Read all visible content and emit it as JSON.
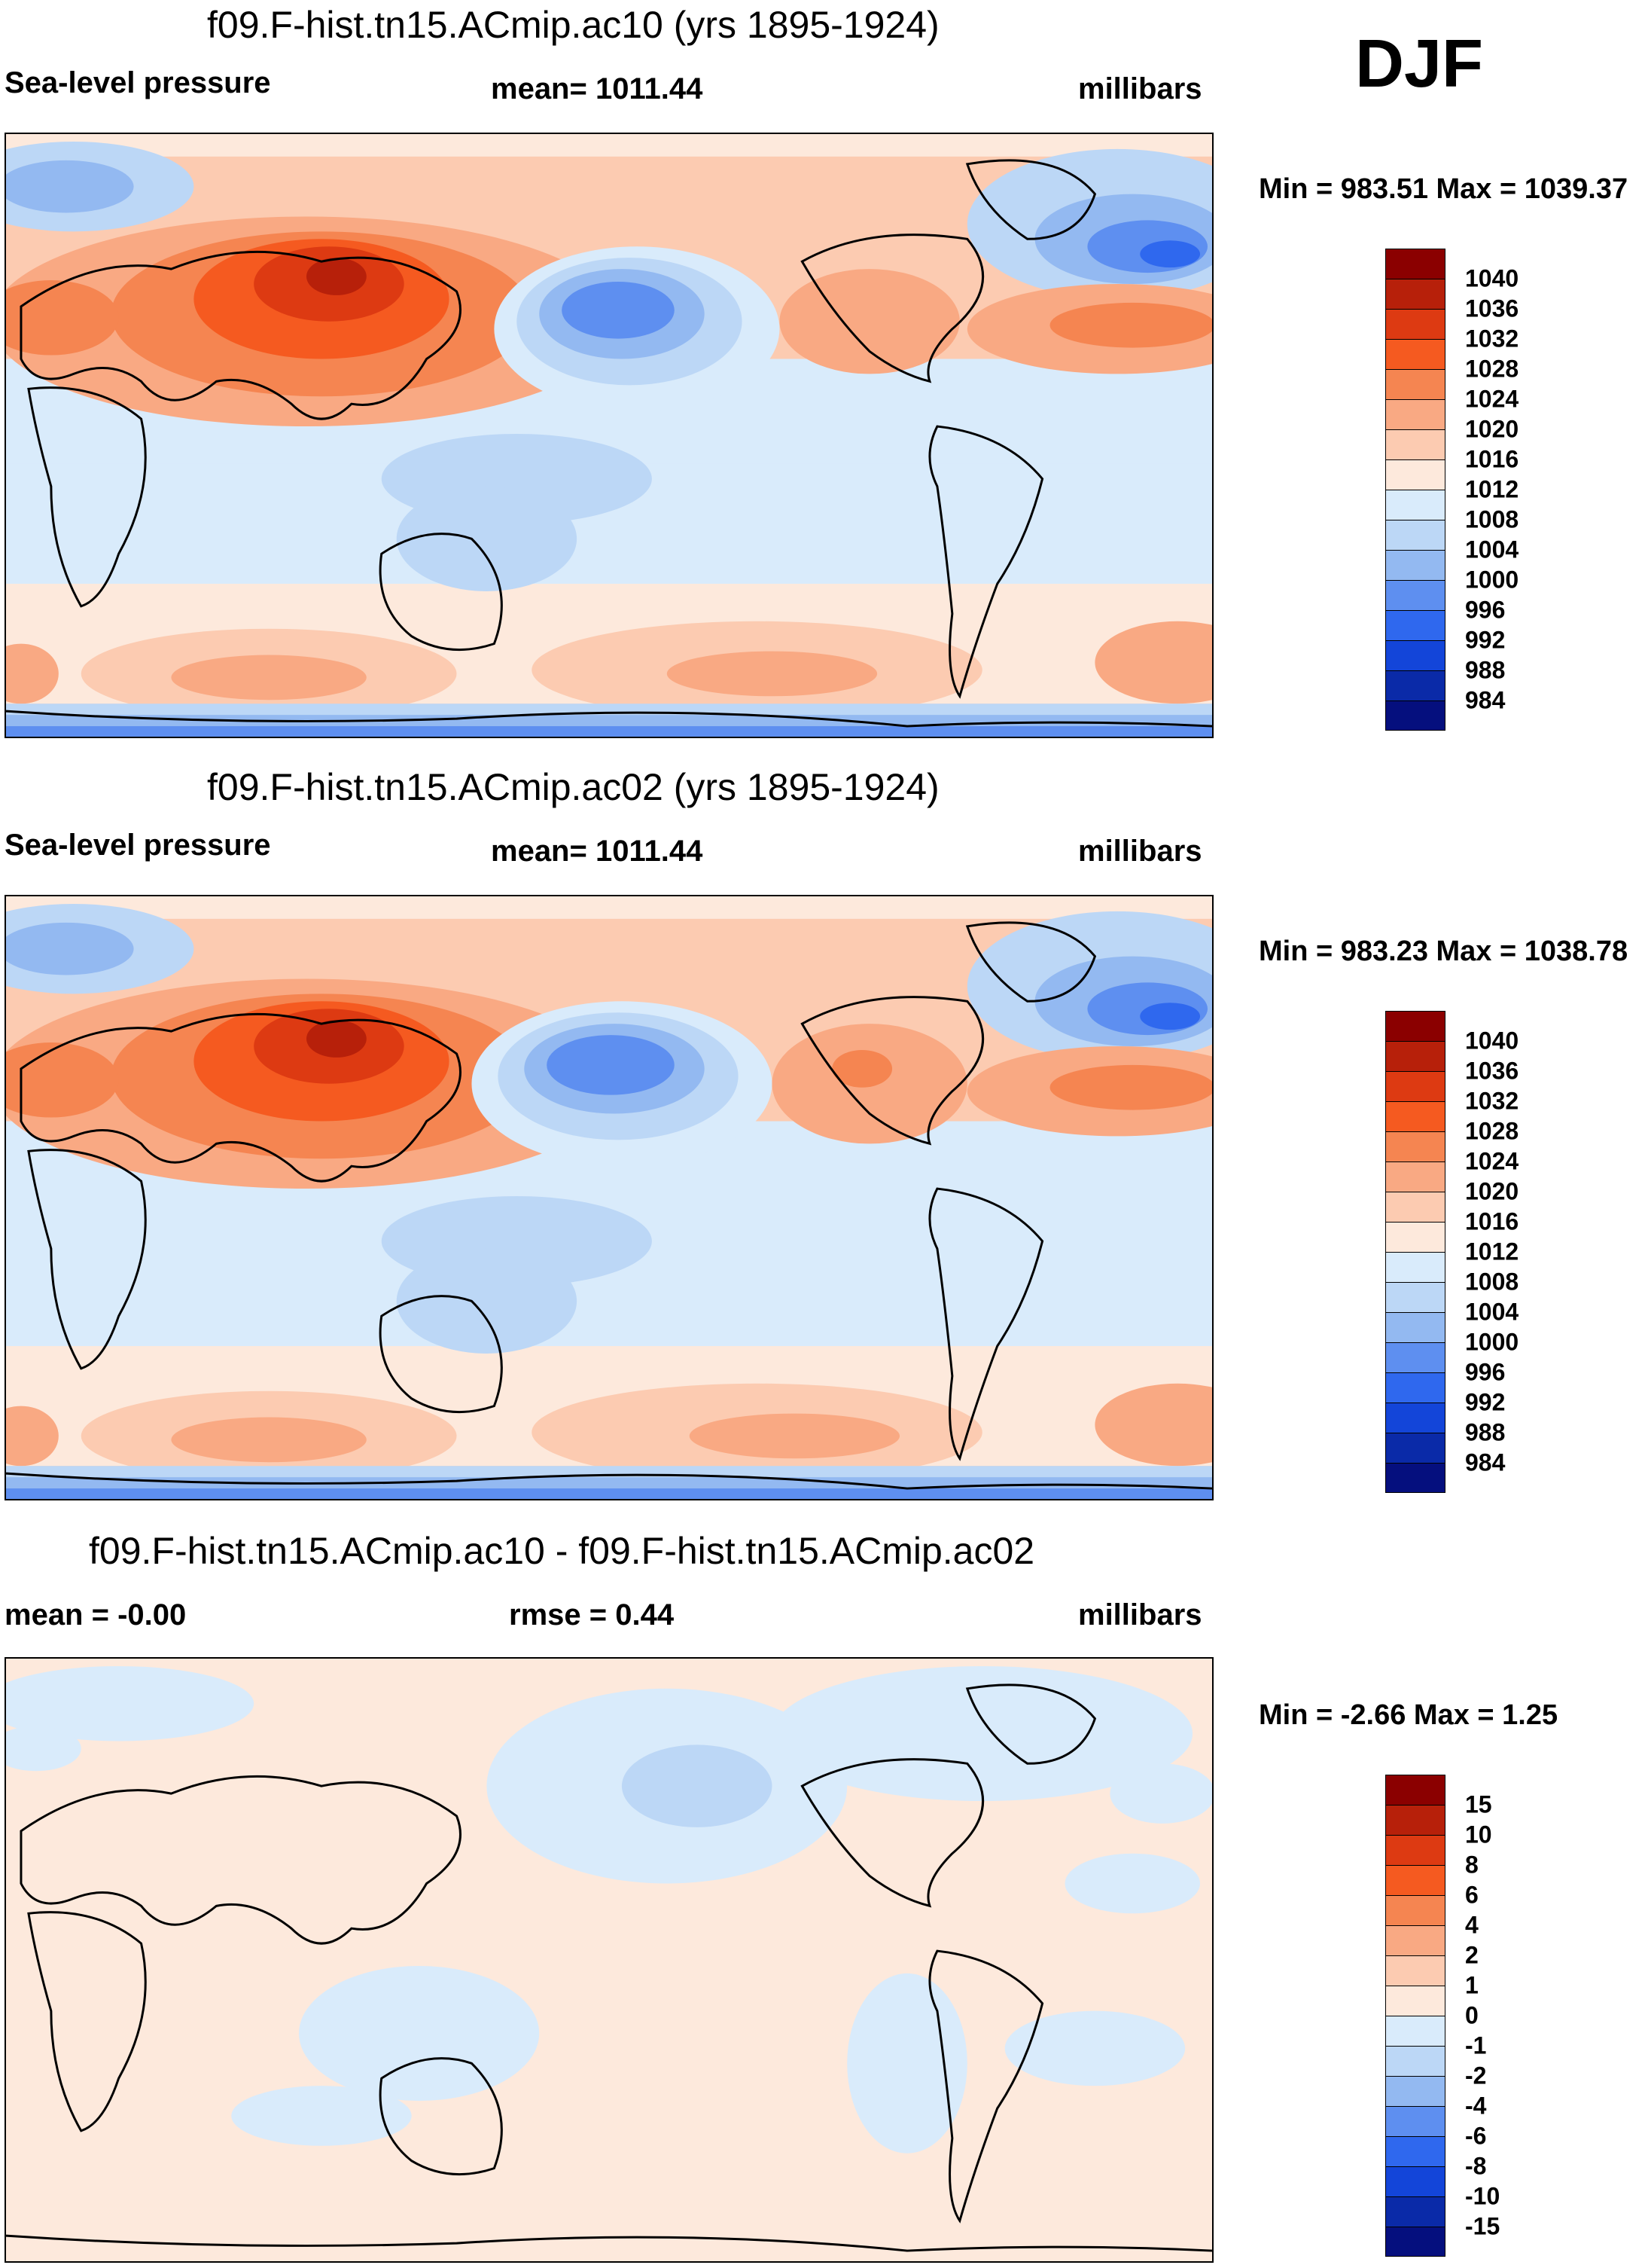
{
  "season": "DJF",
  "panels": [
    {
      "title": "f09.F-hist.tn15.ACmip.ac10 (yrs 1895-1924)",
      "left": "Sea-level pressure",
      "center": "mean= 1011.44",
      "right": "millibars",
      "minmax": "Min = 983.51 Max = 1039.37",
      "levels": [
        "1040",
        "1036",
        "1032",
        "1028",
        "1024",
        "1020",
        "1016",
        "1012",
        "1008",
        "1004",
        "1000",
        "996",
        "992",
        "988",
        "984"
      ],
      "colors": [
        "#8b0000",
        "#b7200a",
        "#dd3a12",
        "#f55a20",
        "#f58551",
        "#f9a983",
        "#fccbb1",
        "#fde9dc",
        "#d9ebfb",
        "#bcd7f6",
        "#93b9f1",
        "#5e8ff0",
        "#2f68ee",
        "#1345d9",
        "#0a2aa8",
        "#050f7e"
      ]
    },
    {
      "title": "f09.F-hist.tn15.ACmip.ac02 (yrs 1895-1924)",
      "left": "Sea-level pressure",
      "center": "mean= 1011.44",
      "right": "millibars",
      "minmax": "Min = 983.23 Max = 1038.78",
      "levels": [
        "1040",
        "1036",
        "1032",
        "1028",
        "1024",
        "1020",
        "1016",
        "1012",
        "1008",
        "1004",
        "1000",
        "996",
        "992",
        "988",
        "984"
      ],
      "colors": [
        "#8b0000",
        "#b7200a",
        "#dd3a12",
        "#f55a20",
        "#f58551",
        "#f9a983",
        "#fccbb1",
        "#fde9dc",
        "#d9ebfb",
        "#bcd7f6",
        "#93b9f1",
        "#5e8ff0",
        "#2f68ee",
        "#1345d9",
        "#0a2aa8",
        "#050f7e"
      ]
    },
    {
      "title": "f09.F-hist.tn15.ACmip.ac10 - f09.F-hist.tn15.ACmip.ac02",
      "left": "mean =  -0.00",
      "center": "rmse =   0.44",
      "right": "millibars",
      "minmax": "Min =  -2.66 Max =   1.25",
      "levels": [
        "15",
        "10",
        "8",
        "6",
        "4",
        "2",
        "1",
        "0",
        "-1",
        "-2",
        "-4",
        "-6",
        "-8",
        "-10",
        "-15"
      ],
      "colors": [
        "#8b0000",
        "#b7200a",
        "#dd3a12",
        "#f55a20",
        "#f58551",
        "#f9a983",
        "#fccbb1",
        "#fde9dc",
        "#d9ebfb",
        "#bcd7f6",
        "#93b9f1",
        "#5e8ff0",
        "#2f68ee",
        "#1345d9",
        "#0a2aa8",
        "#050f7e"
      ]
    }
  ]
}
